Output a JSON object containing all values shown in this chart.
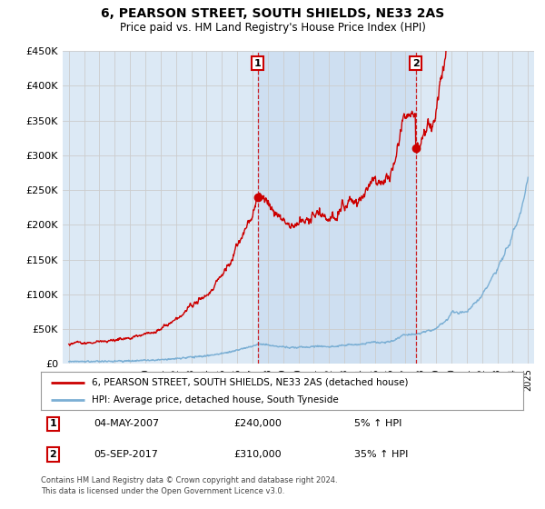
{
  "title": "6, PEARSON STREET, SOUTH SHIELDS, NE33 2AS",
  "subtitle": "Price paid vs. HM Land Registry's House Price Index (HPI)",
  "legend_label_red": "6, PEARSON STREET, SOUTH SHIELDS, NE33 2AS (detached house)",
  "legend_label_blue": "HPI: Average price, detached house, South Tyneside",
  "annotation1_date": "04-MAY-2007",
  "annotation1_price": "£240,000",
  "annotation1_hpi": "5% ↑ HPI",
  "annotation2_date": "05-SEP-2017",
  "annotation2_price": "£310,000",
  "annotation2_hpi": "35% ↑ HPI",
  "footer_line1": "Contains HM Land Registry data © Crown copyright and database right 2024.",
  "footer_line2": "This data is licensed under the Open Government Licence v3.0.",
  "ylim": [
    0,
    450000
  ],
  "yticks": [
    0,
    50000,
    100000,
    150000,
    200000,
    250000,
    300000,
    350000,
    400000,
    450000
  ],
  "xmin": 1994.6,
  "xmax": 2025.4,
  "event1_x": 2007.34,
  "event1_y": 240000,
  "event2_x": 2017.67,
  "event2_y": 310000,
  "red_color": "#cc0000",
  "blue_color": "#7bafd4",
  "bg_color": "#dce9f5",
  "shade_color": "#c5d9ef",
  "plot_bg": "#ffffff",
  "grid_color": "#cccccc",
  "box_color": "#cc0000"
}
